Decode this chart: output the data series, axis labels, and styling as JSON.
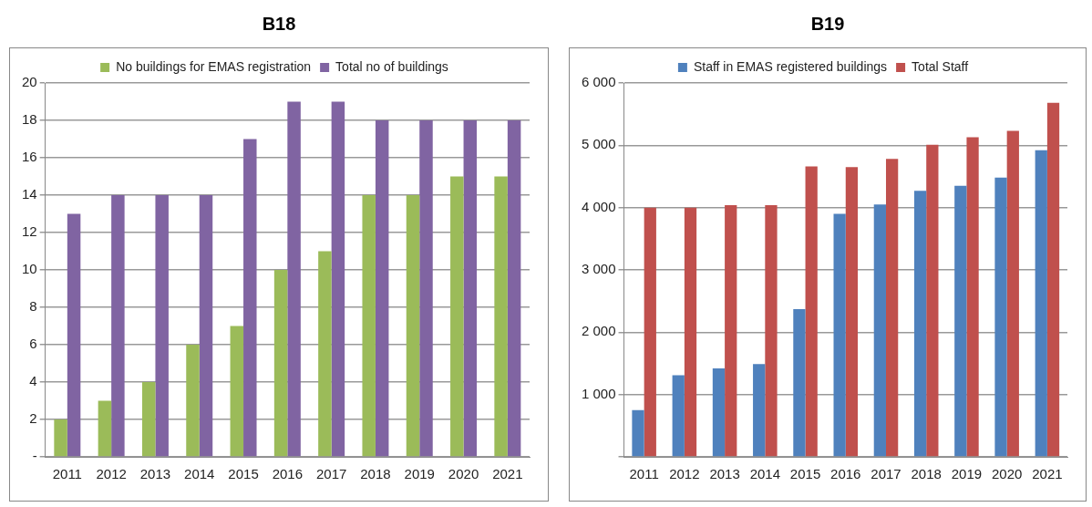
{
  "chart_data": [
    {
      "type": "bar",
      "title": "B18",
      "categories": [
        "2011",
        "2012",
        "2013",
        "2014",
        "2015",
        "2016",
        "2017",
        "2018",
        "2019",
        "2020",
        "2021"
      ],
      "series": [
        {
          "name": "No buildings for EMAS registration",
          "color": "#9bbb59",
          "values": [
            2,
            3,
            4,
            6,
            7,
            10,
            11,
            14,
            14,
            15,
            15
          ]
        },
        {
          "name": "Total no of buildings",
          "color": "#8064a2",
          "values": [
            13,
            14,
            14,
            14,
            17,
            19,
            19,
            18,
            18,
            18,
            18
          ]
        }
      ],
      "ylim": [
        0,
        20
      ],
      "yticks": [
        {
          "value": 0,
          "label": "-"
        },
        2,
        4,
        6,
        8,
        10,
        12,
        14,
        16,
        18,
        20
      ],
      "grid": "y",
      "legend": "top"
    },
    {
      "type": "bar",
      "title": "B19",
      "categories": [
        "2011",
        "2012",
        "2013",
        "2014",
        "2015",
        "2016",
        "2017",
        "2018",
        "2019",
        "2020",
        "2021"
      ],
      "series": [
        {
          "name": "Staff in EMAS registered buildings",
          "color": "#4f81bd",
          "values": [
            750,
            1310,
            1420,
            1490,
            2370,
            3900,
            4050,
            4270,
            4350,
            4480,
            4920
          ]
        },
        {
          "name": "Total Staff",
          "color": "#c0504d",
          "values": [
            4000,
            4000,
            4040,
            4040,
            4660,
            4650,
            4780,
            5010,
            5130,
            5230,
            5680
          ]
        }
      ],
      "ylim": [
        0,
        6000
      ],
      "yticks": [
        {
          "value": 0,
          "label": null
        },
        {
          "value": 1000,
          "label": "1 000"
        },
        {
          "value": 2000,
          "label": "2 000"
        },
        {
          "value": 3000,
          "label": "3 000"
        },
        {
          "value": 4000,
          "label": "4 000"
        },
        {
          "value": 5000,
          "label": "5 000"
        },
        {
          "value": 6000,
          "label": "6 000"
        }
      ],
      "grid": "y",
      "legend": "top"
    }
  ]
}
